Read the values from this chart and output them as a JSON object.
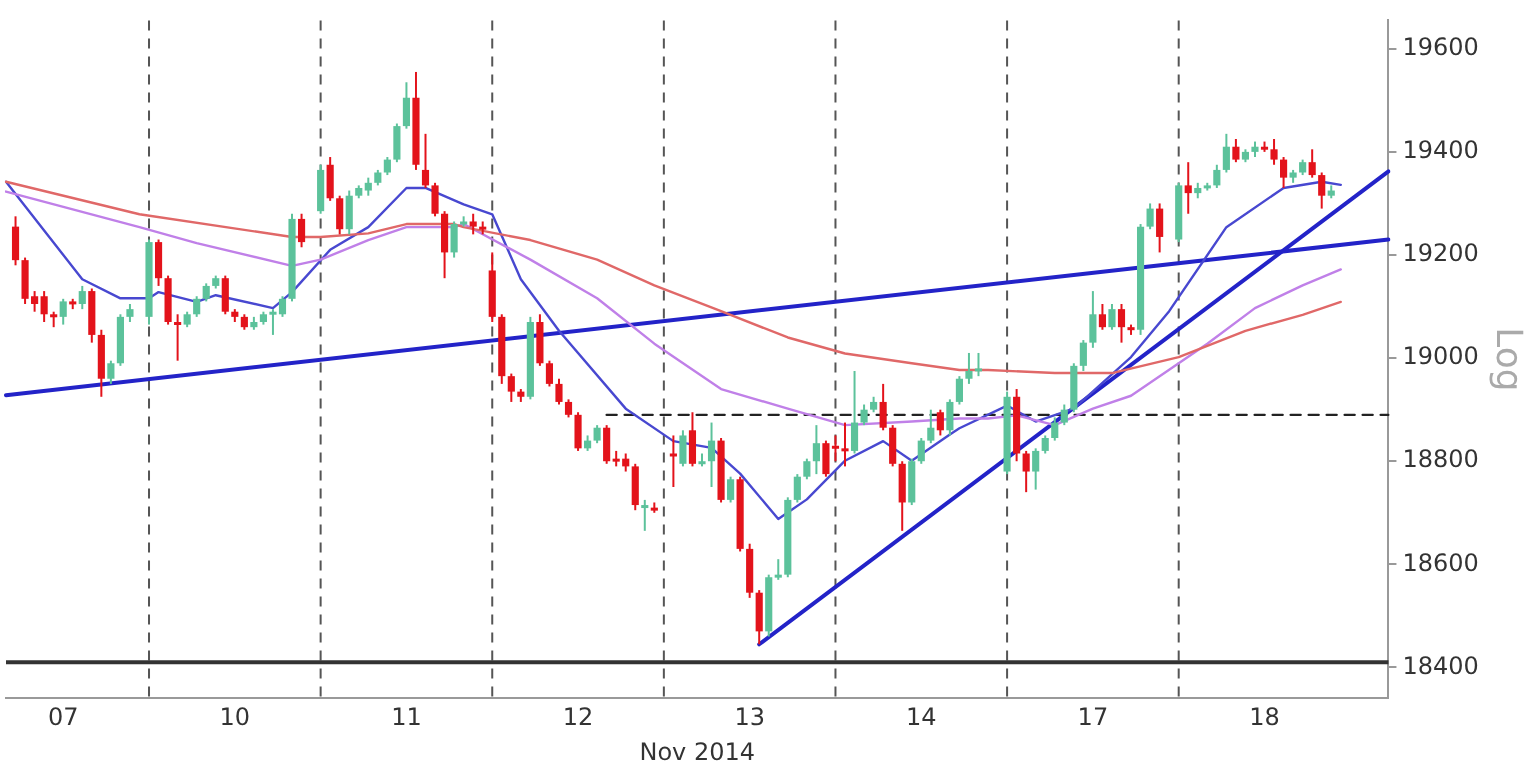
{
  "chart_data": {
    "type": "candlestick",
    "xlabel": "Nov 2014",
    "ylabel": "Log",
    "ylim": [
      18340,
      19655
    ],
    "categories": [
      null,
      null,
      null,
      null,
      null,
      null,
      "07",
      null,
      null,
      null,
      null,
      null,
      null,
      null,
      null,
      null,
      null,
      null,
      null,
      null,
      null,
      null,
      null,
      null,
      "10",
      null,
      null,
      null,
      null,
      null,
      null,
      null,
      null,
      null,
      null,
      null,
      null,
      null,
      null,
      null,
      null,
      null,
      "11",
      null,
      null,
      null,
      null,
      null,
      null,
      null,
      null,
      null,
      null,
      null,
      null,
      null,
      null,
      null,
      null,
      null,
      "12",
      null,
      null,
      null,
      null,
      null,
      null,
      null,
      null,
      null,
      null,
      null,
      null,
      null,
      null,
      null,
      null,
      null,
      "13",
      null,
      null,
      null,
      null,
      null,
      null,
      null,
      null,
      null,
      null,
      null,
      null,
      null,
      null,
      null,
      null,
      null,
      "14",
      null,
      null,
      null,
      null,
      null,
      null,
      null,
      null,
      null,
      null,
      null,
      null,
      null,
      null,
      null,
      null,
      null,
      "17",
      null,
      null,
      null,
      null,
      null,
      null,
      null,
      null,
      null,
      null,
      null,
      null,
      null,
      null,
      null,
      null,
      null,
      "18",
      null,
      null,
      null,
      null,
      null,
      null,
      null,
      null,
      null,
      null,
      null,
      null,
      null
    ],
    "yticks": [
      18400,
      18600,
      18800,
      19000,
      19200,
      19400,
      19600
    ],
    "grid": false,
    "legend": false,
    "marker": "none",
    "ref_lines": [
      {
        "axis": "y",
        "value": 18410,
        "color": "#333333",
        "line_style": "solid"
      }
    ],
    "series": [
      {
        "type": "line",
        "color": "#e06868",
        "line_style": "solid",
        "values": [
          19342,
          null,
          null,
          null,
          null,
          null,
          null,
          null,
          null,
          null,
          null,
          null,
          null,
          null,
          19279,
          null,
          null,
          null,
          null,
          null,
          null,
          null,
          null,
          null,
          null,
          null,
          null,
          null,
          null,
          null,
          19235,
          null,
          null,
          19235,
          null,
          null,
          null,
          null,
          19242,
          null,
          null,
          null,
          19260,
          null,
          null,
          null,
          null,
          19260,
          19254,
          null,
          null,
          null,
          null,
          null,
          null,
          19229,
          null,
          null,
          null,
          null,
          null,
          null,
          19191,
          null,
          null,
          null,
          null,
          null,
          19141,
          null,
          null,
          null,
          null,
          null,
          null,
          19091,
          null,
          null,
          null,
          null,
          null,
          null,
          19040,
          null,
          null,
          null,
          null,
          null,
          19009,
          null,
          null,
          null,
          null,
          null,
          null,
          18990,
          null,
          null,
          null,
          null,
          18977,
          null,
          null,
          18977,
          null,
          null,
          null,
          null,
          null,
          null,
          18971,
          null,
          null,
          null,
          null,
          null,
          18971,
          null,
          null,
          null,
          null,
          null,
          null,
          19002,
          null,
          null,
          null,
          null,
          null,
          null,
          19053,
          null,
          null,
          null,
          null,
          null,
          19084,
          null,
          null,
          null,
          19109,
          null,
          null,
          null,
          null,
          null
        ]
      },
      {
        "type": "line",
        "color": "#c080e8",
        "line_style": "solid",
        "values": [
          19323,
          null,
          null,
          null,
          null,
          null,
          null,
          null,
          null,
          null,
          null,
          null,
          null,
          null,
          19254,
          null,
          null,
          null,
          null,
          null,
          19223,
          null,
          null,
          null,
          null,
          null,
          null,
          null,
          null,
          null,
          19179,
          null,
          null,
          19191,
          null,
          null,
          null,
          null,
          19229,
          null,
          null,
          null,
          19254,
          null,
          null,
          null,
          null,
          19254,
          19260,
          null,
          null,
          null,
          null,
          null,
          null,
          19191,
          null,
          null,
          null,
          null,
          null,
          null,
          19116,
          null,
          null,
          null,
          null,
          null,
          19028,
          null,
          null,
          null,
          null,
          null,
          null,
          18940,
          null,
          null,
          null,
          null,
          null,
          null,
          18902,
          null,
          null,
          null,
          null,
          null,
          18870,
          null,
          null,
          null,
          null,
          null,
          null,
          18877,
          null,
          null,
          null,
          null,
          18883,
          null,
          null,
          18883,
          null,
          null,
          18889,
          null,
          null,
          null,
          18870,
          null,
          null,
          null,
          18902,
          null,
          null,
          null,
          18927,
          null,
          null,
          null,
          null,
          18990,
          null,
          null,
          19028,
          null,
          null,
          null,
          null,
          19097,
          null,
          null,
          null,
          null,
          19141,
          null,
          null,
          null,
          19172,
          null,
          null,
          null,
          null,
          null
        ]
      },
      {
        "type": "line",
        "color": "#4848d0",
        "line_style": "solid",
        "values": [
          19342,
          null,
          null,
          null,
          null,
          null,
          null,
          null,
          19153,
          null,
          null,
          null,
          19116,
          null,
          null,
          19116,
          19128,
          null,
          null,
          null,
          19109,
          null,
          19122,
          null,
          null,
          null,
          null,
          null,
          19097,
          null,
          19128,
          null,
          null,
          null,
          19210,
          null,
          null,
          null,
          19254,
          null,
          null,
          null,
          19330,
          null,
          19330,
          null,
          null,
          null,
          19298,
          null,
          null,
          19279,
          null,
          null,
          19153,
          null,
          null,
          null,
          19053,
          null,
          null,
          null,
          null,
          null,
          null,
          18902,
          null,
          null,
          null,
          null,
          18839,
          null,
          null,
          null,
          18826,
          null,
          null,
          18776,
          null,
          null,
          null,
          18688,
          null,
          null,
          18726,
          null,
          null,
          null,
          18801,
          null,
          null,
          null,
          18839,
          null,
          null,
          18801,
          null,
          null,
          null,
          18852,
          18864,
          null,
          null,
          null,
          null,
          18908,
          null,
          null,
          18877,
          null,
          null,
          null,
          18902,
          null,
          null,
          null,
          null,
          null,
          19002,
          null,
          null,
          null,
          19091,
          null,
          null,
          null,
          null,
          null,
          19254,
          null,
          null,
          null,
          null,
          null,
          19330,
          null,
          null,
          null,
          19342,
          null,
          19336,
          null,
          null,
          null,
          null,
          null
        ]
      },
      {
        "type": "line",
        "color": "#222222",
        "line_style": "dashed",
        "values": [
          null,
          null,
          null,
          null,
          null,
          null,
          null,
          null,
          null,
          null,
          null,
          null,
          null,
          null,
          null,
          null,
          null,
          null,
          null,
          null,
          null,
          null,
          null,
          null,
          null,
          null,
          null,
          null,
          null,
          null,
          null,
          null,
          null,
          null,
          null,
          null,
          null,
          null,
          null,
          null,
          null,
          null,
          null,
          null,
          null,
          null,
          null,
          null,
          null,
          null,
          null,
          null,
          null,
          null,
          null,
          null,
          null,
          null,
          null,
          null,
          null,
          null,
          null,
          18890,
          null,
          null,
          null,
          null,
          null,
          null,
          null,
          null,
          null,
          null,
          null,
          null,
          null,
          null,
          null,
          null,
          null,
          null,
          null,
          null,
          null,
          null,
          null,
          null,
          null,
          null,
          null,
          null,
          null,
          null,
          null,
          null,
          null,
          null,
          null,
          null,
          null,
          null,
          null,
          null,
          null,
          null,
          null,
          null,
          null,
          null,
          null,
          null,
          null,
          null,
          null,
          null,
          null,
          null,
          null,
          null,
          null,
          null,
          null,
          null,
          null,
          null,
          null,
          null,
          null,
          null,
          null,
          null,
          null,
          null,
          null,
          null,
          null,
          null,
          null,
          null,
          null,
          null,
          null,
          null,
          null,
          18890
        ]
      },
      {
        "type": "line",
        "color": "#2323c8",
        "line_style": "solid",
        "values": [
          18928,
          null,
          null,
          null,
          null,
          null,
          null,
          null,
          null,
          null,
          null,
          null,
          null,
          null,
          null,
          null,
          null,
          null,
          null,
          null,
          null,
          null,
          null,
          null,
          null,
          null,
          null,
          null,
          null,
          null,
          null,
          null,
          null,
          null,
          null,
          null,
          null,
          null,
          null,
          null,
          null,
          null,
          null,
          null,
          null,
          null,
          null,
          null,
          null,
          null,
          null,
          null,
          null,
          null,
          null,
          null,
          null,
          null,
          null,
          null,
          null,
          null,
          null,
          null,
          null,
          null,
          null,
          null,
          null,
          null,
          null,
          null,
          null,
          null,
          null,
          null,
          null,
          null,
          null,
          null,
          null,
          null,
          null,
          null,
          null,
          null,
          null,
          null,
          null,
          null,
          null,
          null,
          null,
          null,
          null,
          null,
          null,
          null,
          null,
          null,
          null,
          null,
          null,
          null,
          null,
          null,
          null,
          null,
          null,
          null,
          null,
          null,
          null,
          null,
          null,
          null,
          null,
          null,
          null,
          null,
          null,
          null,
          null,
          null,
          null,
          null,
          null,
          null,
          null,
          null,
          null,
          null,
          null,
          null,
          null,
          null,
          null,
          null,
          null,
          null,
          null,
          null,
          null,
          null,
          null,
          19230
        ]
      },
      {
        "type": "line",
        "color": "#2323c8",
        "line_style": "solid",
        "values": [
          null,
          null,
          null,
          null,
          null,
          null,
          null,
          null,
          null,
          null,
          null,
          null,
          null,
          null,
          null,
          null,
          null,
          null,
          null,
          null,
          null,
          null,
          null,
          null,
          null,
          null,
          null,
          null,
          null,
          null,
          null,
          null,
          null,
          null,
          null,
          null,
          null,
          null,
          null,
          null,
          null,
          null,
          null,
          null,
          null,
          null,
          null,
          null,
          null,
          null,
          null,
          null,
          null,
          null,
          null,
          null,
          null,
          null,
          null,
          null,
          null,
          null,
          null,
          null,
          null,
          null,
          null,
          null,
          null,
          null,
          null,
          null,
          null,
          null,
          null,
          null,
          null,
          null,
          null,
          18445,
          null,
          null,
          null,
          null,
          null,
          null,
          null,
          null,
          null,
          null,
          null,
          null,
          null,
          null,
          null,
          null,
          null,
          null,
          null,
          null,
          null,
          null,
          null,
          null,
          null,
          null,
          null,
          null,
          null,
          null,
          null,
          null,
          null,
          null,
          null,
          null,
          null,
          null,
          null,
          null,
          null,
          null,
          null,
          null,
          null,
          null,
          null,
          null,
          null,
          null,
          null,
          null,
          null,
          null,
          null,
          null,
          null,
          null,
          null,
          null,
          null,
          null,
          null,
          null,
          null,
          19362
        ]
      },
      {
        "ohlc": [
          null,
          [
            19255,
            19275,
            19180,
            19190
          ],
          [
            19190,
            19195,
            19105,
            19115
          ],
          [
            19120,
            19130,
            19090,
            19105
          ],
          [
            19120,
            19130,
            19070,
            19085
          ],
          [
            19085,
            19090,
            19060,
            19080
          ],
          [
            19080,
            19115,
            19065,
            19110
          ],
          [
            19110,
            19115,
            19095,
            19105
          ],
          [
            19105,
            19140,
            19095,
            19130
          ],
          [
            19130,
            19135,
            19030,
            19045
          ],
          [
            19045,
            19055,
            18925,
            18960
          ],
          [
            18960,
            18995,
            18950,
            18990
          ],
          [
            18990,
            19085,
            18985,
            19080
          ],
          [
            19080,
            19105,
            19070,
            19095
          ],
          null,
          [
            19080,
            19230,
            19065,
            19225
          ],
          [
            19225,
            19230,
            19140,
            19155
          ],
          [
            19155,
            19160,
            19065,
            19070
          ],
          [
            19070,
            19085,
            18995,
            19065
          ],
          [
            19065,
            19090,
            19060,
            19085
          ],
          [
            19085,
            19120,
            19080,
            19115
          ],
          [
            19115,
            19145,
            19110,
            19140
          ],
          [
            19140,
            19160,
            19135,
            19155
          ],
          [
            19155,
            19160,
            19085,
            19090
          ],
          [
            19090,
            19095,
            19070,
            19080
          ],
          [
            19080,
            19085,
            19055,
            19060
          ],
          [
            19060,
            19080,
            19055,
            19070
          ],
          [
            19070,
            19090,
            19065,
            19085
          ],
          [
            19085,
            19095,
            19045,
            19090
          ],
          [
            19085,
            19120,
            19080,
            19115
          ],
          [
            19115,
            19280,
            19110,
            19270
          ],
          [
            19270,
            19280,
            19215,
            19225
          ],
          null,
          [
            19285,
            19375,
            19280,
            19365
          ],
          [
            19375,
            19390,
            19305,
            19310
          ],
          [
            19310,
            19315,
            19240,
            19250
          ],
          [
            19250,
            19325,
            19240,
            19315
          ],
          [
            19315,
            19335,
            19310,
            19330
          ],
          [
            19325,
            19350,
            19315,
            19340
          ],
          [
            19340,
            19365,
            19335,
            19360
          ],
          [
            19360,
            19390,
            19355,
            19385
          ],
          [
            19385,
            19455,
            19380,
            19450
          ],
          [
            19450,
            19535,
            19445,
            19505
          ],
          [
            19505,
            19555,
            19365,
            19375
          ],
          [
            19365,
            19435,
            19330,
            19335
          ],
          [
            19335,
            19340,
            19275,
            19280
          ],
          [
            19280,
            19285,
            19155,
            19205
          ],
          [
            19205,
            19265,
            19195,
            19260
          ],
          [
            19260,
            19275,
            19255,
            19265
          ],
          [
            19265,
            19280,
            19240,
            19255
          ],
          [
            19255,
            19265,
            19240,
            19250
          ],
          [
            19170,
            19205,
            19070,
            19080
          ],
          [
            19080,
            19085,
            18950,
            18965
          ],
          [
            18965,
            18970,
            18915,
            18935
          ],
          [
            18935,
            18940,
            18915,
            18925
          ],
          [
            18925,
            19080,
            18920,
            19070
          ],
          [
            19070,
            19085,
            18985,
            18990
          ],
          [
            18990,
            18995,
            18945,
            18950
          ],
          [
            18950,
            18960,
            18910,
            18915
          ],
          [
            18915,
            18920,
            18885,
            18890
          ],
          [
            18890,
            18895,
            18820,
            18825
          ],
          [
            18825,
            18850,
            18820,
            18840
          ],
          [
            18840,
            18870,
            18835,
            18865
          ],
          [
            18865,
            18870,
            18795,
            18800
          ],
          [
            18805,
            18820,
            18790,
            18800
          ],
          [
            18805,
            18815,
            18780,
            18790
          ],
          [
            18790,
            18795,
            18705,
            18715
          ],
          [
            18710,
            18725,
            18665,
            18715
          ],
          [
            18710,
            18720,
            18700,
            18705
          ],
          null,
          [
            18815,
            18850,
            18750,
            18810
          ],
          [
            18795,
            18860,
            18790,
            18850
          ],
          [
            18860,
            18895,
            18790,
            18795
          ],
          [
            18795,
            18815,
            18790,
            18800
          ],
          [
            18800,
            18875,
            18750,
            18840
          ],
          [
            18840,
            18845,
            18720,
            18725
          ],
          [
            18725,
            18770,
            18720,
            18765
          ],
          [
            18765,
            18770,
            18625,
            18630
          ],
          [
            18630,
            18640,
            18535,
            18545
          ],
          [
            18545,
            18550,
            18445,
            18470
          ],
          [
            18470,
            18580,
            18460,
            18575
          ],
          [
            18575,
            18610,
            18570,
            18580
          ],
          [
            18580,
            18730,
            18575,
            18725
          ],
          [
            18725,
            18775,
            18720,
            18770
          ],
          [
            18770,
            18805,
            18765,
            18800
          ],
          [
            18800,
            18870,
            18775,
            18835
          ],
          [
            18835,
            18840,
            18770,
            18775
          ],
          [
            18830,
            18850,
            18800,
            18825
          ],
          [
            18825,
            18875,
            18790,
            18820
          ],
          [
            18820,
            18975,
            18815,
            18875
          ],
          [
            18875,
            18910,
            18870,
            18900
          ],
          [
            18900,
            18925,
            18895,
            18915
          ],
          [
            18915,
            18950,
            18860,
            18865
          ],
          [
            18865,
            18870,
            18790,
            18795
          ],
          [
            18795,
            18800,
            18665,
            18720
          ],
          [
            18720,
            18805,
            18715,
            18800
          ],
          [
            18800,
            18845,
            18795,
            18840
          ],
          [
            18840,
            18900,
            18835,
            18865
          ],
          [
            18895,
            18900,
            18850,
            18860
          ],
          [
            18860,
            18920,
            18850,
            18915
          ],
          [
            18915,
            18965,
            18910,
            18960
          ],
          [
            18960,
            19010,
            18950,
            18975
          ],
          [
            18975,
            19010,
            18965,
            18980
          ],
          null,
          null,
          [
            18780,
            18935,
            18775,
            18925
          ],
          [
            18925,
            18940,
            18800,
            18815
          ],
          [
            18815,
            18820,
            18740,
            18780
          ],
          [
            18780,
            18825,
            18745,
            18820
          ],
          [
            18820,
            18850,
            18815,
            18845
          ],
          [
            18845,
            18885,
            18840,
            18875
          ],
          [
            18875,
            18910,
            18870,
            18900
          ],
          [
            18900,
            18990,
            18895,
            18985
          ],
          [
            18985,
            19035,
            18975,
            19030
          ],
          [
            19030,
            19130,
            19020,
            19085
          ],
          [
            19085,
            19105,
            19055,
            19060
          ],
          [
            19060,
            19105,
            19055,
            19095
          ],
          [
            19095,
            19105,
            19030,
            19060
          ],
          [
            19060,
            19065,
            19045,
            19055
          ],
          [
            19055,
            19260,
            19045,
            19255
          ],
          [
            19255,
            19300,
            19250,
            19290
          ],
          [
            19290,
            19300,
            19205,
            19235
          ],
          null,
          [
            19230,
            19340,
            19225,
            19335
          ],
          [
            19335,
            19380,
            19280,
            19320
          ],
          [
            19320,
            19340,
            19310,
            19330
          ],
          [
            19330,
            19340,
            19325,
            19335
          ],
          [
            19335,
            19375,
            19330,
            19365
          ],
          [
            19365,
            19435,
            19360,
            19410
          ],
          [
            19410,
            19425,
            19380,
            19385
          ],
          [
            19385,
            19405,
            19380,
            19400
          ],
          [
            19400,
            19420,
            19390,
            19410
          ],
          [
            19410,
            19420,
            19400,
            19405
          ],
          [
            19405,
            19425,
            19375,
            19385
          ],
          [
            19385,
            19390,
            19330,
            19350
          ],
          [
            19350,
            19365,
            19340,
            19360
          ],
          [
            19360,
            19385,
            19355,
            19380
          ],
          [
            19380,
            19405,
            19350,
            19355
          ],
          [
            19355,
            19360,
            19290,
            19315
          ],
          [
            19315,
            19335,
            19310,
            19325
          ],
          null,
          null,
          null,
          null,
          null,
          null
        ],
        "colors": [
          null,
          "#e3131b",
          "#e3131b",
          "#e3131b",
          "#e3131b",
          "#e3131b",
          "#5cc29b",
          "#e3131b",
          "#5cc29b",
          "#e3131b",
          "#e3131b",
          "#5cc29b",
          "#5cc29b",
          "#5cc29b",
          null,
          "#5cc29b",
          "#e3131b",
          "#e3131b",
          "#e3131b",
          "#5cc29b",
          "#5cc29b",
          "#5cc29b",
          "#5cc29b",
          "#e3131b",
          "#e3131b",
          "#e3131b",
          "#5cc29b",
          "#5cc29b",
          "#5cc29b",
          "#5cc29b",
          "#5cc29b",
          "#e3131b",
          null,
          "#5cc29b",
          "#e3131b",
          "#e3131b",
          "#5cc29b",
          "#5cc29b",
          "#5cc29b",
          "#5cc29b",
          "#5cc29b",
          "#5cc29b",
          "#5cc29b",
          "#e3131b",
          "#e3131b",
          "#e3131b",
          "#e3131b",
          "#5cc29b",
          "#5cc29b",
          "#e3131b",
          "#e3131b",
          "#e3131b",
          "#e3131b",
          "#e3131b",
          "#e3131b",
          "#5cc29b",
          "#e3131b",
          "#e3131b",
          "#e3131b",
          "#e3131b",
          "#e3131b",
          "#5cc29b",
          "#5cc29b",
          "#e3131b",
          "#e3131b",
          "#e3131b",
          "#e3131b",
          "#5cc29b",
          "#e3131b",
          null,
          "#e3131b",
          "#5cc29b",
          "#e3131b",
          "#5cc29b",
          "#5cc29b",
          "#e3131b",
          "#5cc29b",
          "#e3131b",
          "#e3131b",
          "#e3131b",
          "#5cc29b",
          "#5cc29b",
          "#5cc29b",
          "#5cc29b",
          "#5cc29b",
          "#5cc29b",
          "#e3131b",
          "#e3131b",
          "#e3131b",
          "#5cc29b",
          "#5cc29b",
          "#5cc29b",
          "#e3131b",
          "#e3131b",
          "#e3131b",
          "#5cc29b",
          "#5cc29b",
          "#5cc29b",
          "#e3131b",
          "#5cc29b",
          "#5cc29b",
          "#5cc29b",
          "#5cc29b",
          null,
          null,
          "#5cc29b",
          "#e3131b",
          "#e3131b",
          "#5cc29b",
          "#5cc29b",
          "#5cc29b",
          "#5cc29b",
          "#5cc29b",
          "#5cc29b",
          "#5cc29b",
          "#e3131b",
          "#5cc29b",
          "#e3131b",
          "#e3131b",
          "#5cc29b",
          "#5cc29b",
          "#e3131b",
          null,
          "#5cc29b",
          "#e3131b",
          "#5cc29b",
          "#5cc29b",
          "#5cc29b",
          "#5cc29b",
          "#e3131b",
          "#5cc29b",
          "#5cc29b",
          "#e3131b",
          "#e3131b",
          "#e3131b",
          "#5cc29b",
          "#5cc29b",
          "#e3131b",
          "#e3131b",
          "#5cc29b",
          null,
          null,
          null,
          null,
          null,
          null
        ]
      }
    ]
  }
}
